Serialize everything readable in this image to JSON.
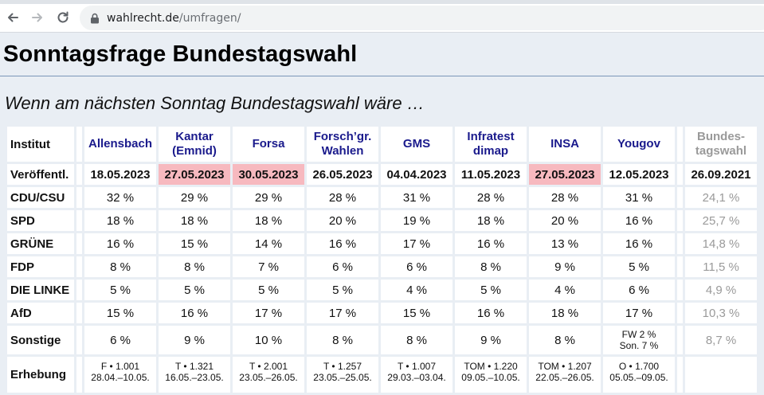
{
  "browser": {
    "url_host": "wahlrecht.de",
    "url_path": "/umfragen/"
  },
  "page": {
    "title": "Sonntagsfrage Bundestagswahl",
    "subtitle": "Wenn am nächsten Sonntag Bundestagswahl wäre …"
  },
  "table": {
    "institut_label": "Institut",
    "published_label": "Veröffentl.",
    "erhebung_label": "Erhebung",
    "institutes": [
      {
        "line1": "Allensbach",
        "line2": ""
      },
      {
        "line1": "Kantar",
        "line2": "(Emnid)"
      },
      {
        "line1": "Forsa",
        "line2": ""
      },
      {
        "line1": "Forsch’gr.",
        "line2": "Wahlen"
      },
      {
        "line1": "GMS",
        "line2": ""
      },
      {
        "line1": "Infratest",
        "line2": "dimap"
      },
      {
        "line1": "INSA",
        "line2": ""
      },
      {
        "line1": "Yougov",
        "line2": ""
      }
    ],
    "bundestagswahl": {
      "line1": "Bundes-",
      "line2": "tagswahl",
      "date": "26.09.2021"
    },
    "published": [
      "18.05.2023",
      "27.05.2023",
      "30.05.2023",
      "26.05.2023",
      "04.04.2023",
      "11.05.2023",
      "27.05.2023",
      "12.05.2023"
    ],
    "highlight_color": "#f7b9bf",
    "parties": [
      {
        "name": "CDU/CSU",
        "values": [
          "32 %",
          "29 %",
          "29 %",
          "28 %",
          "31 %",
          "28 %",
          "28 %",
          "31 %"
        ],
        "btw": "24,1 %"
      },
      {
        "name": "SPD",
        "values": [
          "18 %",
          "18 %",
          "18 %",
          "20 %",
          "19 %",
          "18 %",
          "20 %",
          "16 %"
        ],
        "btw": "25,7 %"
      },
      {
        "name": "GRÜNE",
        "values": [
          "16 %",
          "15 %",
          "14 %",
          "16 %",
          "17 %",
          "16 %",
          "13 %",
          "16 %"
        ],
        "btw": "14,8 %"
      },
      {
        "name": "FDP",
        "values": [
          "8 %",
          "8 %",
          "7 %",
          "6 %",
          "6 %",
          "8 %",
          "9 %",
          "5 %"
        ],
        "btw": "11,5 %"
      },
      {
        "name": "DIE LINKE",
        "values": [
          "5 %",
          "5 %",
          "5 %",
          "5 %",
          "4 %",
          "5 %",
          "4 %",
          "6 %"
        ],
        "btw": "4,9 %"
      },
      {
        "name": "AfD",
        "values": [
          "15 %",
          "16 %",
          "17 %",
          "17 %",
          "15 %",
          "16 %",
          "18 %",
          "17 %"
        ],
        "btw": "10,3 %"
      }
    ],
    "sonstige": {
      "name": "Sonstige",
      "values": [
        "6 %",
        "9 %",
        "10 %",
        "8 %",
        "8 %",
        "9 %",
        "8 %"
      ],
      "yougov_line1": "FW 2 %",
      "yougov_line2": "Son. 7 %",
      "btw": "8,7 %"
    },
    "erhebung": [
      {
        "line1": "F • 1.001",
        "line2": "28.04.–10.05."
      },
      {
        "line1": "T • 1.321",
        "line2": "16.05.–23.05."
      },
      {
        "line1": "T • 2.001",
        "line2": "23.05.–26.05."
      },
      {
        "line1": "T • 1.257",
        "line2": "23.05.–25.05."
      },
      {
        "line1": "T • 1.007",
        "line2": "29.03.–03.04."
      },
      {
        "line1": "TOM • 1.220",
        "line2": "09.05.–10.05."
      },
      {
        "line1": "TOM • 1.207",
        "line2": "22.05.–26.05."
      },
      {
        "line1": "O • 1.700",
        "line2": "05.05.–09.05."
      }
    ]
  }
}
